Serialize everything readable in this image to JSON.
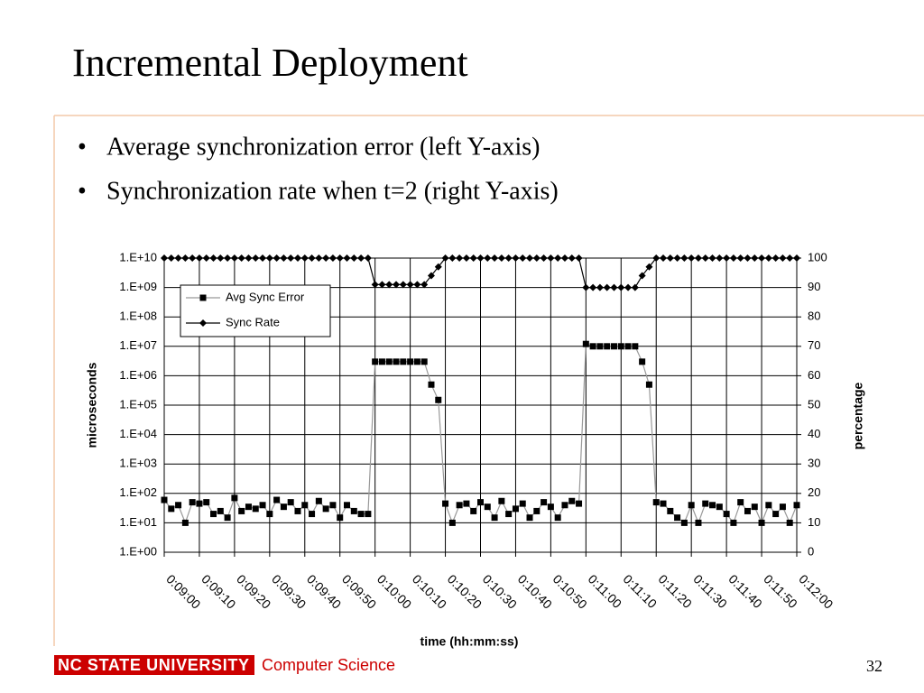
{
  "title": "Incremental Deployment",
  "bullets": [
    "Average synchronization error (left Y-axis)",
    "Synchronization rate when t=2 (right Y-axis)"
  ],
  "footer": {
    "university": "NC STATE UNIVERSITY",
    "department": "Computer Science",
    "page": "32"
  },
  "chart_data": {
    "type": "line",
    "xlabel": "time (hh:mm:ss)",
    "ylabel": "microseconds",
    "y2label": "percentage",
    "x": [
      540,
      542,
      544,
      546,
      548,
      550,
      552,
      554,
      556,
      558,
      560,
      562,
      564,
      566,
      568,
      570,
      572,
      574,
      576,
      578,
      580,
      582,
      584,
      586,
      588,
      590,
      592,
      594,
      596,
      598,
      600,
      602,
      604,
      606,
      608,
      610,
      612,
      614,
      616,
      618,
      620,
      622,
      624,
      626,
      628,
      630,
      632,
      634,
      636,
      638,
      640,
      642,
      644,
      646,
      648,
      650,
      652,
      654,
      656,
      658,
      660,
      662,
      664,
      666,
      668,
      670,
      672,
      674,
      676,
      678,
      680,
      682,
      684,
      686,
      688,
      690,
      692,
      694,
      696,
      698,
      700,
      702,
      704,
      706,
      708,
      710,
      712,
      714,
      716,
      718,
      720
    ],
    "xlim": [
      540,
      720
    ],
    "xticks": [
      {
        "value": 540,
        "label": "0:09:00"
      },
      {
        "value": 550,
        "label": "0:09:10"
      },
      {
        "value": 560,
        "label": "0:09:20"
      },
      {
        "value": 570,
        "label": "0:09:30"
      },
      {
        "value": 580,
        "label": "0:09:40"
      },
      {
        "value": 590,
        "label": "0:09:50"
      },
      {
        "value": 600,
        "label": "0:10:00"
      },
      {
        "value": 610,
        "label": "0:10:10"
      },
      {
        "value": 620,
        "label": "0:10:20"
      },
      {
        "value": 630,
        "label": "0:10:30"
      },
      {
        "value": 640,
        "label": "0:10:40"
      },
      {
        "value": 650,
        "label": "0:10:50"
      },
      {
        "value": 660,
        "label": "0:11:00"
      },
      {
        "value": 670,
        "label": "0:11:10"
      },
      {
        "value": 680,
        "label": "0:11:20"
      },
      {
        "value": 690,
        "label": "0:11:30"
      },
      {
        "value": 700,
        "label": "0:11:40"
      },
      {
        "value": 710,
        "label": "0:11:50"
      },
      {
        "value": 720,
        "label": "0:12:00"
      }
    ],
    "ylog": true,
    "ylim": [
      1,
      10000000000
    ],
    "yticks": [
      {
        "value": 1,
        "label": "1.E+00"
      },
      {
        "value": 10,
        "label": "1.E+01"
      },
      {
        "value": 100,
        "label": "1.E+02"
      },
      {
        "value": 1000,
        "label": "1.E+03"
      },
      {
        "value": 10000,
        "label": "1.E+04"
      },
      {
        "value": 100000,
        "label": "1.E+05"
      },
      {
        "value": 1000000,
        "label": "1.E+06"
      },
      {
        "value": 10000000,
        "label": "1.E+07"
      },
      {
        "value": 100000000,
        "label": "1.E+08"
      },
      {
        "value": 1000000000,
        "label": "1.E+09"
      },
      {
        "value": 10000000000,
        "label": "1.E+10"
      }
    ],
    "y2lim": [
      0,
      100
    ],
    "y2ticks": [
      0,
      10,
      20,
      30,
      40,
      50,
      60,
      70,
      80,
      90,
      100
    ],
    "grid": true,
    "legend": "upper left",
    "series": [
      {
        "name": "Avg Sync Error",
        "color": "#000000",
        "line_color": "#999999",
        "marker": "square",
        "values": [
          60,
          30,
          40,
          10,
          50,
          45,
          50,
          20,
          25,
          15,
          70,
          25,
          35,
          30,
          40,
          20,
          60,
          35,
          50,
          25,
          40,
          20,
          55,
          30,
          40,
          15,
          40,
          25,
          20,
          20,
          3000000,
          3000000,
          3000000,
          3000000,
          3000000,
          3000000,
          3000000,
          3000000,
          500000,
          150000,
          45,
          10,
          40,
          45,
          25,
          50,
          35,
          15,
          55,
          20,
          30,
          45,
          15,
          25,
          50,
          35,
          15,
          40,
          55,
          45,
          12000000,
          10000000,
          10000000,
          10000000,
          10000000,
          10000000,
          10000000,
          10000000,
          3000000,
          500000,
          50,
          45,
          25,
          15,
          10,
          40,
          10,
          45,
          40,
          35,
          20,
          10,
          50,
          25,
          35,
          10,
          40,
          20,
          35,
          10,
          40
        ]
      },
      {
        "name": "Sync Rate",
        "color": "#000000",
        "line_color": "#000000",
        "marker": "diamond",
        "axis": "y2",
        "values": [
          100,
          100,
          100,
          100,
          100,
          100,
          100,
          100,
          100,
          100,
          100,
          100,
          100,
          100,
          100,
          100,
          100,
          100,
          100,
          100,
          100,
          100,
          100,
          100,
          100,
          100,
          100,
          100,
          100,
          100,
          91,
          91,
          91,
          91,
          91,
          91,
          91,
          91,
          94,
          97,
          100,
          100,
          100,
          100,
          100,
          100,
          100,
          100,
          100,
          100,
          100,
          100,
          100,
          100,
          100,
          100,
          100,
          100,
          100,
          100,
          90,
          90,
          90,
          90,
          90,
          90,
          90,
          90,
          94,
          97,
          100,
          100,
          100,
          100,
          100,
          100,
          100,
          100,
          100,
          100,
          100,
          100,
          100,
          100,
          100,
          100,
          100,
          100,
          100,
          100,
          100
        ]
      }
    ]
  }
}
